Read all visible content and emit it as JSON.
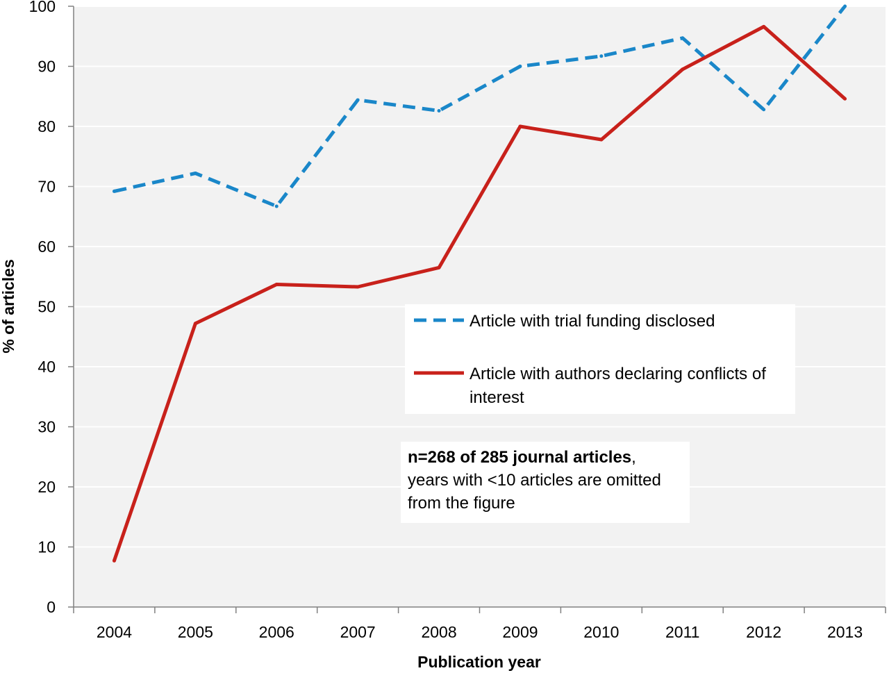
{
  "chart_data": {
    "type": "line",
    "xlabel": "Publication year",
    "ylabel": "% of articles",
    "ylim": [
      0,
      100
    ],
    "yticks": [
      0,
      10,
      20,
      30,
      40,
      50,
      60,
      70,
      80,
      90,
      100
    ],
    "categories": [
      "2004",
      "2005",
      "2006",
      "2007",
      "2008",
      "2009",
      "2010",
      "2011",
      "2012",
      "2013"
    ],
    "grid": "horizontal",
    "legend_position": "center-right",
    "series": [
      {
        "name": "Article with trial funding disclosed",
        "style": "dashed",
        "color": "#1a87c9",
        "values": [
          69.2,
          72.2,
          66.7,
          84.4,
          82.6,
          90.0,
          91.7,
          94.7,
          82.8,
          100.0
        ]
      },
      {
        "name": "Article with authors declaring conflicts of interest",
        "name_lines": [
          "Article with authors declaring conflicts of",
          "interest"
        ],
        "style": "solid",
        "color": "#c8211b",
        "values": [
          7.7,
          47.2,
          53.7,
          53.3,
          56.5,
          80.0,
          77.8,
          89.5,
          96.6,
          84.6
        ]
      }
    ],
    "annotation": {
      "bold": "n=268 of 285 journal articles",
      "bold_suffix": ",",
      "line2": "years with <10 articles are omitted",
      "line3": "from the figure"
    }
  }
}
